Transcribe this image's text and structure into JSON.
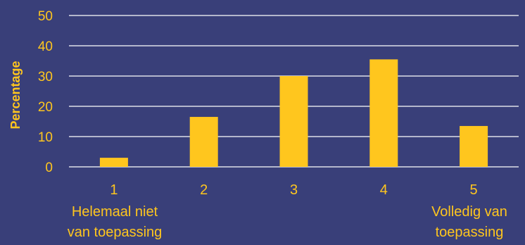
{
  "colors": {
    "background": "#393F79",
    "bar": "#FFC61E",
    "text": "#FFC61E",
    "gridline": "#FFFFFF"
  },
  "chart_data": {
    "type": "bar",
    "ylabel": "Percentage",
    "ylim": [
      0,
      50
    ],
    "yticks": [
      0,
      10,
      20,
      30,
      40,
      50
    ],
    "grid": true,
    "categories": [
      "1",
      "2",
      "3",
      "4",
      "5"
    ],
    "values": [
      3,
      16.5,
      30,
      35.5,
      13.5
    ],
    "anchor_labels": {
      "left": [
        "Helemaal niet",
        "van toepassing"
      ],
      "right": [
        "Volledig van",
        "toepassing"
      ]
    }
  }
}
